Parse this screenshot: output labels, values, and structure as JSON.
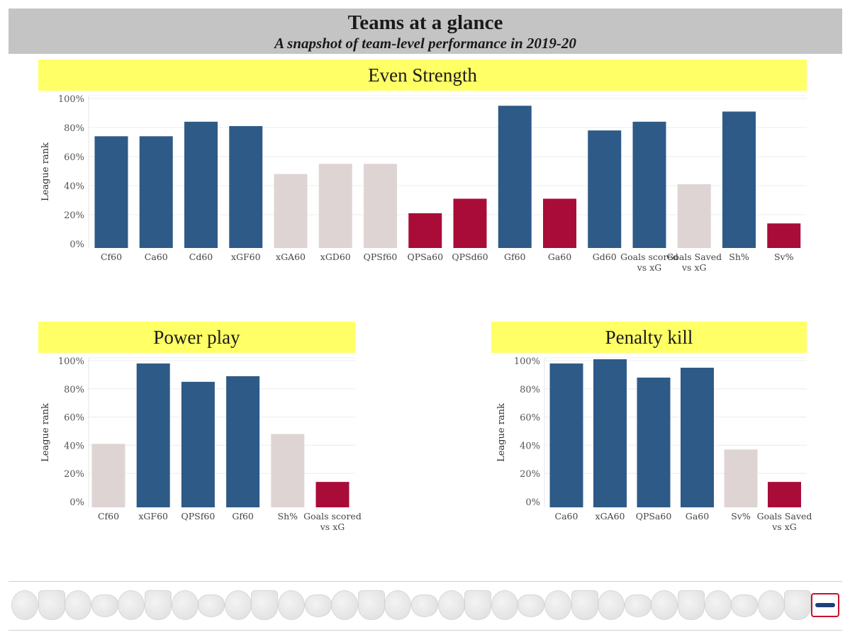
{
  "header": {
    "title": "Teams at a glance",
    "subtitle": "A snapshot of team-level performance in 2019-20"
  },
  "colors": {
    "high": "#2e5a87",
    "mid": "#dfd4d4",
    "low": "#a90c38",
    "panel_title_bg": "#ffff66",
    "header_bg": "#c4c4c4"
  },
  "chart_data": [
    {
      "type": "bar",
      "title": "Even Strength",
      "ylabel": "League rank",
      "ylim": [
        0,
        100
      ],
      "yticks": [
        "0%",
        "20%",
        "40%",
        "60%",
        "80%",
        "100%"
      ],
      "grid": true,
      "categories": [
        "Cf60",
        "Ca60",
        "Cd60",
        "xGF60",
        "xGA60",
        "xGD60",
        "QPSf60",
        "QPSa60",
        "QPSd60",
        "Gf60",
        "Ga60",
        "Gd60",
        "Goals scored vs xG",
        "Goals Saved vs xG",
        "Sh%",
        "Sv%"
      ],
      "values": [
        74,
        74,
        84,
        81,
        48,
        55,
        55,
        21,
        31,
        95,
        31,
        78,
        84,
        41,
        91,
        14
      ],
      "tiers": [
        "high",
        "high",
        "high",
        "high",
        "mid",
        "mid",
        "mid",
        "low",
        "low",
        "high",
        "low",
        "high",
        "high",
        "mid",
        "high",
        "low"
      ]
    },
    {
      "type": "bar",
      "title": "Power play",
      "ylabel": "League rank",
      "ylim": [
        0,
        100
      ],
      "yticks": [
        "0%",
        "20%",
        "40%",
        "60%",
        "80%",
        "100%"
      ],
      "grid": true,
      "categories": [
        "Cf60",
        "xGF60",
        "QPSf60",
        "Gf60",
        "Sh%",
        "Goals scored vs xG"
      ],
      "values": [
        41,
        98,
        85,
        89,
        48,
        14
      ],
      "tiers": [
        "mid",
        "high",
        "high",
        "high",
        "mid",
        "low"
      ]
    },
    {
      "type": "bar",
      "title": "Penalty kill",
      "ylabel": "League rank",
      "ylim": [
        0,
        100
      ],
      "yticks": [
        "0%",
        "20%",
        "40%",
        "60%",
        "80%",
        "100%"
      ],
      "grid": true,
      "categories": [
        "Ca60",
        "xGA60",
        "QPSa60",
        "Ga60",
        "Sv%",
        "Goals Saved vs xG"
      ],
      "values": [
        98,
        101,
        88,
        95,
        37,
        14
      ],
      "tiers": [
        "high",
        "high",
        "high",
        "high",
        "mid",
        "low"
      ]
    }
  ],
  "footer": {
    "team_logos": [
      "ducks-logo",
      "coyotes-logo",
      "bruins-logo",
      "sabres-logo",
      "hurricanes-logo",
      "blue-jackets-logo",
      "flames-logo",
      "blackhawks-logo",
      "avalanche-logo",
      "stars-logo",
      "red-wings-logo",
      "oilers-logo",
      "panthers-logo",
      "kings-logo",
      "wild-logo",
      "canadiens-logo",
      "devils-logo",
      "predators-logo",
      "islanders-logo",
      "rangers-logo",
      "senators-logo",
      "flyers-logo",
      "penguins-logo",
      "sharks-logo",
      "blues-logo",
      "lightning-logo",
      "maple-leafs-logo",
      "canucks-logo",
      "golden-knights-logo",
      "jets-logo",
      "capitals-logo"
    ],
    "highlighted_logo": "capitals-logo"
  }
}
